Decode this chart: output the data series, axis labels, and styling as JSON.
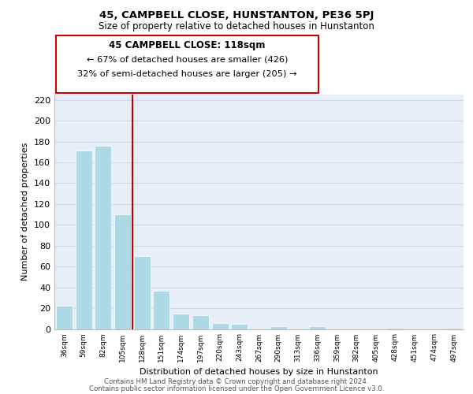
{
  "title": "45, CAMPBELL CLOSE, HUNSTANTON, PE36 5PJ",
  "subtitle": "Size of property relative to detached houses in Hunstanton",
  "xlabel": "Distribution of detached houses by size in Hunstanton",
  "ylabel": "Number of detached properties",
  "categories": [
    "36sqm",
    "59sqm",
    "82sqm",
    "105sqm",
    "128sqm",
    "151sqm",
    "174sqm",
    "197sqm",
    "220sqm",
    "243sqm",
    "267sqm",
    "290sqm",
    "313sqm",
    "336sqm",
    "359sqm",
    "382sqm",
    "405sqm",
    "428sqm",
    "451sqm",
    "474sqm",
    "497sqm"
  ],
  "values": [
    22,
    171,
    176,
    110,
    70,
    37,
    15,
    13,
    6,
    5,
    0,
    3,
    0,
    3,
    0,
    0,
    0,
    1,
    0,
    0,
    1
  ],
  "bar_color": "#add8e6",
  "bar_edge_color": "#ffffff",
  "vline_color": "#cc0000",
  "vline_x_index": 3.5,
  "ylim": [
    0,
    225
  ],
  "yticks": [
    0,
    20,
    40,
    60,
    80,
    100,
    120,
    140,
    160,
    180,
    200,
    220
  ],
  "annotation_title": "45 CAMPBELL CLOSE: 118sqm",
  "annotation_line1": "← 67% of detached houses are smaller (426)",
  "annotation_line2": "32% of semi-detached houses are larger (205) →",
  "annotation_box_color": "#ffffff",
  "annotation_box_edge": "#cc0000",
  "grid_color": "#d0d8e8",
  "background_color": "#e8eef8",
  "title_fontsize": 9.5,
  "subtitle_fontsize": 8.5,
  "footer1": "Contains HM Land Registry data © Crown copyright and database right 2024.",
  "footer2": "Contains public sector information licensed under the Open Government Licence v3.0."
}
